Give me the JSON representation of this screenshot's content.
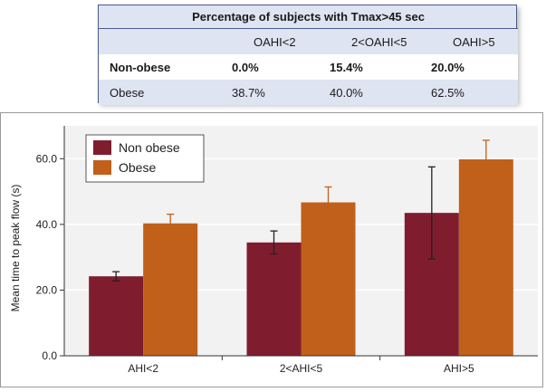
{
  "table": {
    "title": "Percentage of subjects with Tmax>45 sec",
    "columns": [
      "",
      "OAHI<2",
      "2<OAHI<5",
      "OAHI>5"
    ],
    "rows": [
      {
        "label": "Non-obese",
        "values": [
          "0.0%",
          "15.4%",
          "20.0%"
        ],
        "bold": true
      },
      {
        "label": "Obese",
        "values": [
          "38.7%",
          "40.0%",
          "62.5%"
        ],
        "bold": false
      }
    ]
  },
  "chart_data": {
    "type": "bar",
    "categories": [
      "AHI<2",
      "2<AHI<5",
      "AHI>5"
    ],
    "series": [
      {
        "name": "Non obese",
        "color": "#7f1d2e",
        "values": [
          24.2,
          34.5,
          43.5
        ],
        "err_low": [
          1.4,
          3.5,
          14.0
        ],
        "err_high": [
          1.4,
          3.5,
          14.0
        ]
      },
      {
        "name": "Obese",
        "color": "#c0601b",
        "values": [
          40.3,
          46.7,
          59.8
        ],
        "err_low": [
          0,
          0,
          0
        ],
        "err_high": [
          2.8,
          4.7,
          5.8
        ]
      }
    ],
    "title": "",
    "xlabel": "",
    "ylabel": "Mean time to peak flow (s)",
    "ylim": [
      0,
      70
    ],
    "yticks": [
      "0.0",
      "20.0",
      "40.0",
      "60.0"
    ],
    "ytick_values": [
      0,
      20,
      40,
      60
    ],
    "legend_position": "top-left",
    "grid": true,
    "background": "#f2f2f2",
    "grid_color": "#ffffff"
  }
}
